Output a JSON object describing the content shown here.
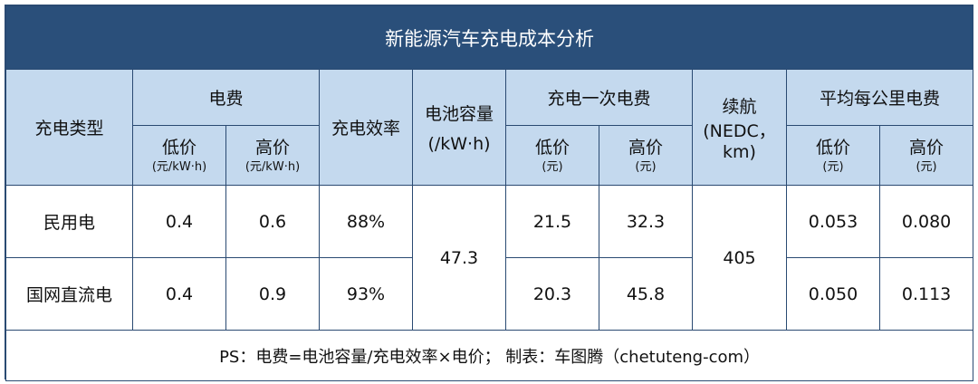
{
  "title": "新能源汽车充电成本分析",
  "headers": {
    "charge_type": "充电类型",
    "electricity_fee": "电费",
    "efficiency": "充电效率",
    "battery_capacity": "电池容量",
    "battery_capacity_unit": "(/kW·h)",
    "one_charge_fee": "充电一次电费",
    "range_line1": "续航",
    "range_line2": "(NEDC，",
    "range_line3": "km)",
    "avg_per_km": "平均每公里电费",
    "low": "低价",
    "high": "高价",
    "unit_kwh": "(元/kW·h)",
    "unit_yuan": "(元)"
  },
  "rows": [
    {
      "type": "民用电",
      "low": "0.4",
      "high": "0.6",
      "efficiency": "88%",
      "once_low": "21.5",
      "once_high": "32.3",
      "km_low": "0.053",
      "km_high": "0.080"
    },
    {
      "type": "国网直流电",
      "low": "0.4",
      "high": "0.9",
      "efficiency": "93%",
      "once_low": "20.3",
      "once_high": "45.8",
      "km_low": "0.050",
      "km_high": "0.113"
    }
  ],
  "shared": {
    "battery_capacity": "47.3",
    "range": "405"
  },
  "note": "PS：电费=电池容量/充电效率×电价；  制表：车图腾（chetuteng-com）"
}
